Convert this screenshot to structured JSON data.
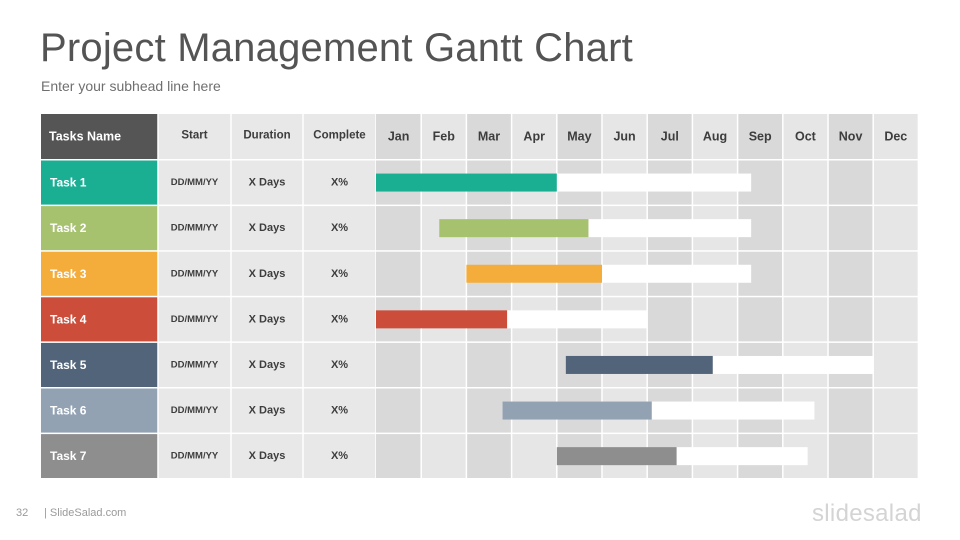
{
  "title": "Project Management Gantt Chart",
  "subtitle": "Enter your subhead line here",
  "footer": {
    "page_number": "32",
    "brand": "| SlideSalad.com",
    "logo": "slidesalad"
  },
  "chart_data": {
    "type": "gantt",
    "headers": {
      "task": "Tasks Name",
      "start": "Start",
      "duration": "Duration",
      "complete": "Complete"
    },
    "months": [
      "Jan",
      "Feb",
      "Mar",
      "Apr",
      "May",
      "Jun",
      "Jul",
      "Aug",
      "Sep",
      "Oct",
      "Nov",
      "Dec"
    ],
    "tasks": [
      {
        "name": "Task 1",
        "start": "DD/MM/YY",
        "duration": "X Days",
        "complete": "X%",
        "color": "#1aae93",
        "bar_start": 0.0,
        "bar_done_end": 4.0,
        "bar_end": 8.3
      },
      {
        "name": "Task 2",
        "start": "DD/MM/YY",
        "duration": "X Days",
        "complete": "X%",
        "color": "#a7c26f",
        "bar_start": 1.4,
        "bar_done_end": 4.7,
        "bar_end": 8.3
      },
      {
        "name": "Task 3",
        "start": "DD/MM/YY",
        "duration": "X Days",
        "complete": "X%",
        "color": "#f4ad3b",
        "bar_start": 2.0,
        "bar_done_end": 5.0,
        "bar_end": 8.3
      },
      {
        "name": "Task 4",
        "start": "DD/MM/YY",
        "duration": "X Days",
        "complete": "X%",
        "color": "#cb4d3a",
        "bar_start": 0.0,
        "bar_done_end": 2.9,
        "bar_end": 6.0
      },
      {
        "name": "Task 5",
        "start": "DD/MM/YY",
        "duration": "X Days",
        "complete": "X%",
        "color": "#52647a",
        "bar_start": 4.2,
        "bar_done_end": 7.45,
        "bar_end": 11.0
      },
      {
        "name": "Task 6",
        "start": "DD/MM/YY",
        "duration": "X Days",
        "complete": "X%",
        "color": "#92a2b3",
        "bar_start": 2.8,
        "bar_done_end": 6.1,
        "bar_end": 9.7
      },
      {
        "name": "Task 7",
        "start": "DD/MM/YY",
        "duration": "X Days",
        "complete": "X%",
        "color": "#8e8e8e",
        "bar_start": 4.0,
        "bar_done_end": 6.65,
        "bar_end": 9.55
      }
    ],
    "colors": {
      "header_task_bg": "#555555",
      "header_bg": "#e8e8e8",
      "month_even_bg": "#d9d9d9",
      "month_odd_bg": "#e6e6e6",
      "cell_bg": "#e8e8e8",
      "remaining_bar": "#ffffff",
      "header_text": "#3d3d3d",
      "task_text": "#ffffff"
    }
  }
}
